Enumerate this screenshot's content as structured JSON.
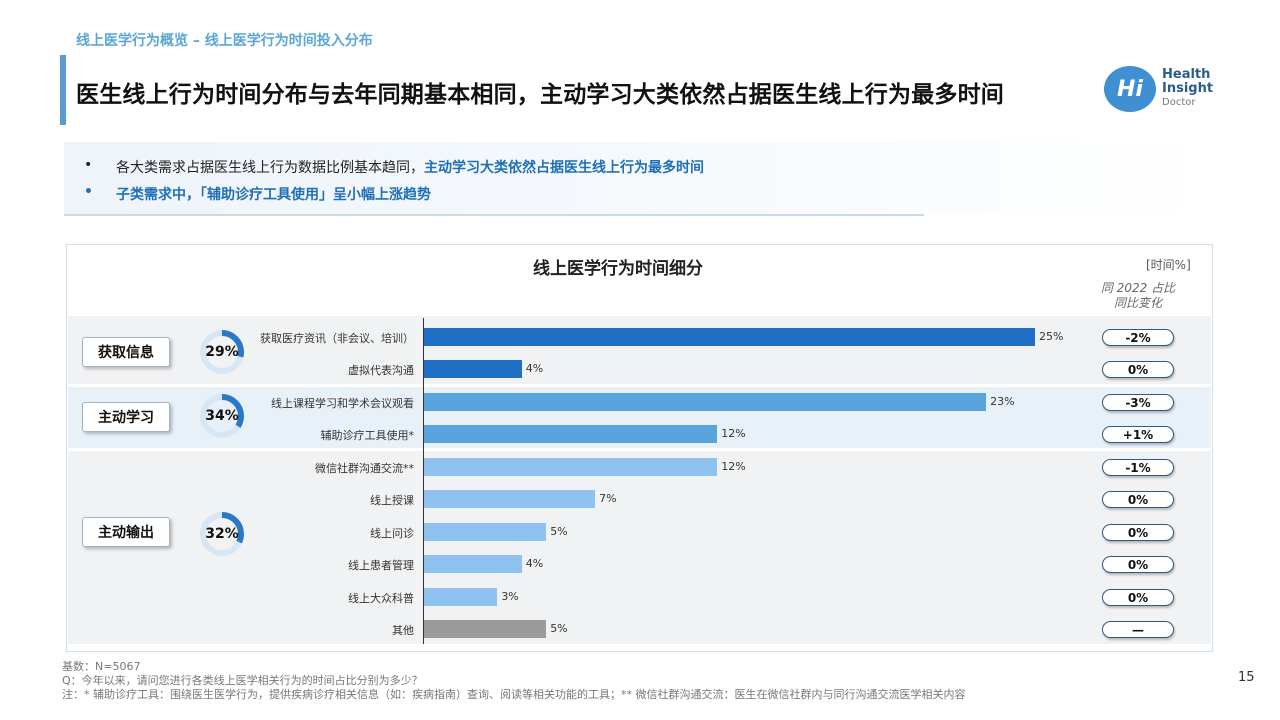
{
  "breadcrumb": "线上医学行为概览 – 线上医学行为时间投入分布",
  "page_title": "医生线上行为时间分布与去年同期基本相同，主动学习大类依然占据医生线上行为最多时间",
  "logo": {
    "mark": "Hi",
    "line1": "Health",
    "line2": "Insight",
    "line3": "Doctor"
  },
  "summary": {
    "bullet1_symbol": "•",
    "bullet1_normal": "各大类需求占据医生线上行为数据比例基本趋同，",
    "bullet1_highlight": "主动学习大类依然占据医生线上行为最多时间",
    "bullet2_symbol": "•",
    "bullet2_highlight": "子类需求中，「辅助诊疗工具使用」呈小幅上涨趋势"
  },
  "chart_data": {
    "type": "bar",
    "orientation": "horizontal",
    "title": "线上医学行为时间细分",
    "unit_label": "[时间%]",
    "yoy_header_line1": "同 2022 占比",
    "yoy_header_line2": "同比变化",
    "xlim": [
      0,
      25
    ],
    "groups": [
      {
        "name": "获取信息",
        "share": 29,
        "share_label": "29%"
      },
      {
        "name": "主动学习",
        "share": 34,
        "share_label": "34%"
      },
      {
        "name": "主动输出",
        "share": 32,
        "share_label": "32%"
      }
    ],
    "categories": [
      "获取医疗资讯（非会议、培训）",
      "虚拟代表沟通",
      "线上课程学习和学术会议观看",
      "辅助诊疗工具使用*",
      "微信社群沟通交流**",
      "线上授课",
      "线上问诊",
      "线上患者管理",
      "线上大众科普",
      "其他"
    ],
    "values": [
      25,
      4,
      23,
      12,
      12,
      7,
      5,
      4,
      3,
      5
    ],
    "value_labels": [
      "25%",
      "4%",
      "23%",
      "12%",
      "12%",
      "7%",
      "5%",
      "4%",
      "3%",
      "5%"
    ],
    "yoy_change": [
      "-2%",
      "0%",
      "-3%",
      "+1%",
      "-1%",
      "0%",
      "0%",
      "0%",
      "0%",
      "—"
    ],
    "bar_colors": [
      "#1f6fc5",
      "#1f6fc5",
      "#5aa4de",
      "#5aa4de",
      "#8fc2ef",
      "#8fc2ef",
      "#8fc2ef",
      "#8fc2ef",
      "#8fc2ef",
      "#9b9b9b"
    ],
    "donut_color": "#2a78c8",
    "donut_track_color": "#d6e6f4",
    "grid": false
  },
  "footer": {
    "base": "基数：N=5067",
    "question": "Q：今年以来，请问您进行各类线上医学相关行为的时间占比分别为多少？",
    "note": "注：* 辅助诊疗工具：围绕医生医学行为，提供疾病诊疗相关信息（如：疾病指南）查询、阅读等相关功能的工具；** 微信社群沟通交流：医生在微信社群内与同行沟通交流医学相关内容"
  },
  "page_number": "15"
}
